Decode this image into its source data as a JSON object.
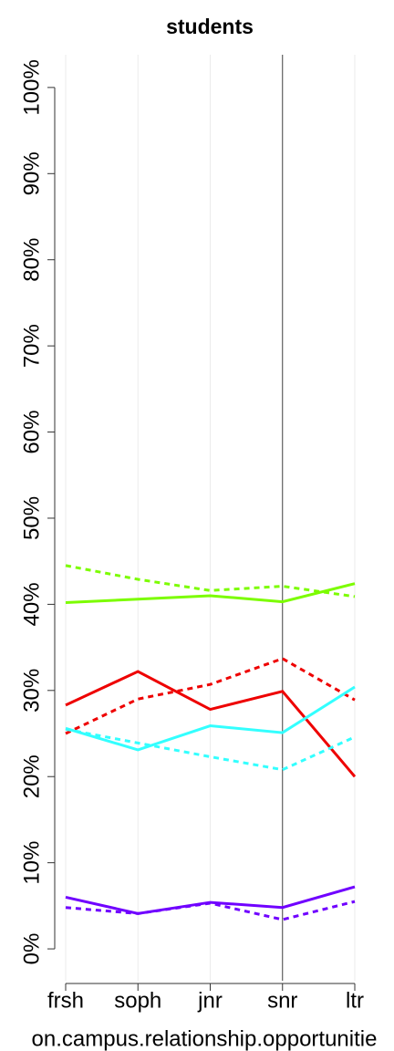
{
  "chart_data": {
    "type": "line",
    "title": "students",
    "xlabel": "on.campus.relationship.opportunitie",
    "categories": [
      "frsh",
      "soph",
      "jnr",
      "snr",
      "ltr"
    ],
    "series": [
      {
        "color": "#7cfc00",
        "dash": false,
        "values": [
          40.2,
          40.6,
          41.0,
          40.3,
          42.4
        ]
      },
      {
        "color": "#7cfc00",
        "dash": true,
        "values": [
          44.5,
          42.9,
          41.6,
          42.1,
          40.9
        ]
      },
      {
        "color": "#ee0000",
        "dash": false,
        "values": [
          28.3,
          32.2,
          27.8,
          29.9,
          20.0
        ]
      },
      {
        "color": "#ee0000",
        "dash": true,
        "values": [
          25.0,
          29.0,
          30.7,
          33.7,
          28.9
        ]
      },
      {
        "color": "#33ffff",
        "dash": false,
        "values": [
          25.6,
          23.1,
          25.9,
          25.1,
          30.4
        ]
      },
      {
        "color": "#33ffff",
        "dash": true,
        "values": [
          25.5,
          23.9,
          22.3,
          20.8,
          24.6
        ]
      },
      {
        "color": "#7000ff",
        "dash": false,
        "values": [
          6.0,
          4.1,
          5.4,
          4.8,
          7.2
        ]
      },
      {
        "color": "#7000ff",
        "dash": true,
        "values": [
          4.8,
          4.1,
          5.3,
          3.4,
          5.5
        ]
      }
    ],
    "ylim": [
      -3.7,
      103.8
    ],
    "yticks": [
      {
        "value": 0,
        "label": "0%"
      },
      {
        "value": 10,
        "label": "10%"
      },
      {
        "value": 20,
        "label": "20%"
      },
      {
        "value": 30,
        "label": "30%"
      },
      {
        "value": 40,
        "label": "40%"
      },
      {
        "value": 50,
        "label": "50%"
      },
      {
        "value": 60,
        "label": "60%"
      },
      {
        "value": 70,
        "label": "70%"
      },
      {
        "value": 80,
        "label": "80%"
      },
      {
        "value": 90,
        "label": "90%"
      },
      {
        "value": 100,
        "label": "100%"
      }
    ],
    "grid": "x",
    "vline_category": "snr"
  }
}
